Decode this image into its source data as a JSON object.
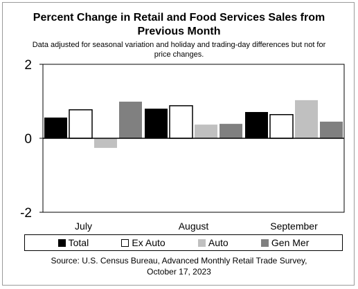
{
  "chart_data": {
    "type": "bar",
    "title": [
      "Percent Change in Retail and Food Services Sales from",
      "Previous Month"
    ],
    "subtitle": [
      "Data adjusted for seasonal variation and holiday and trading-day differences but not for",
      "price changes."
    ],
    "categories": [
      "July",
      "August",
      "September"
    ],
    "series": [
      {
        "name": "Total",
        "values": [
          0.56,
          0.8,
          0.71
        ],
        "color": "#000000"
      },
      {
        "name": "Ex Auto",
        "values": [
          0.77,
          0.88,
          0.64
        ],
        "color": "#ffffff"
      },
      {
        "name": "Auto",
        "values": [
          -0.26,
          0.37,
          1.03
        ],
        "color": "#c0c0c0"
      },
      {
        "name": "Gen Mer",
        "values": [
          0.99,
          0.39,
          0.45
        ],
        "color": "#808080"
      }
    ],
    "ylim": [
      -2,
      2
    ],
    "yticks": [
      {
        "value": 2,
        "label": "2"
      },
      {
        "value": 0,
        "label": "0"
      },
      {
        "value": -2,
        "label": "-2"
      }
    ],
    "xlabel": "",
    "ylabel": "",
    "grid": false,
    "legend_position": "bottom",
    "source": [
      "Source: U.S. Census Bureau, Advanced Monthly Retail Trade Survey,",
      "October 17, 2023"
    ]
  }
}
